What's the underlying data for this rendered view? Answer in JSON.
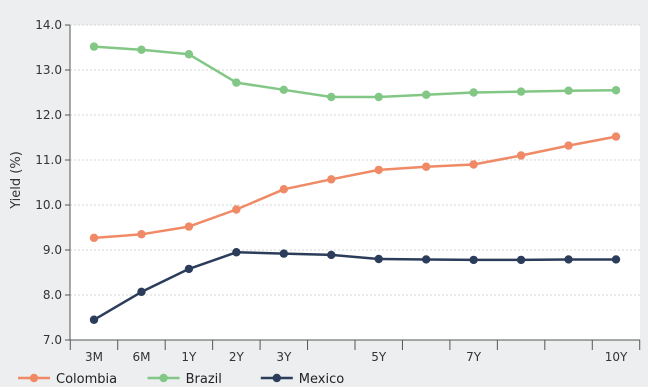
{
  "chart_data": {
    "type": "line",
    "ylabel": "Yield (%)",
    "xlabel": "",
    "title": "",
    "ylim": [
      7.0,
      14.0
    ],
    "yticks": [
      "7.0",
      "8.0",
      "9.0",
      "10.0",
      "11.0",
      "12.0",
      "13.0",
      "14.0"
    ],
    "x_tick_labels": [
      "3M",
      "6M",
      "1Y",
      "2Y",
      "3Y",
      "",
      "5Y",
      "",
      "7Y",
      "",
      "",
      "10Y"
    ],
    "grid": "horizontal",
    "legend_placement": "bottom-left",
    "series": [
      {
        "name": "Colombia",
        "color": "#f08a66",
        "values": [
          9.27,
          9.35,
          9.52,
          9.9,
          10.35,
          10.57,
          10.78,
          10.85,
          10.9,
          11.1,
          11.32,
          11.52
        ]
      },
      {
        "name": "Brazil",
        "color": "#82c785",
        "values": [
          13.52,
          13.45,
          13.35,
          12.72,
          12.56,
          12.4,
          12.4,
          12.45,
          12.5,
          12.52,
          12.54,
          12.55
        ]
      },
      {
        "name": "Mexico",
        "color": "#2b3d5b",
        "values": [
          7.45,
          8.07,
          8.58,
          8.95,
          8.92,
          8.89,
          8.8,
          8.79,
          8.78,
          8.78,
          8.79,
          8.79
        ]
      }
    ]
  }
}
